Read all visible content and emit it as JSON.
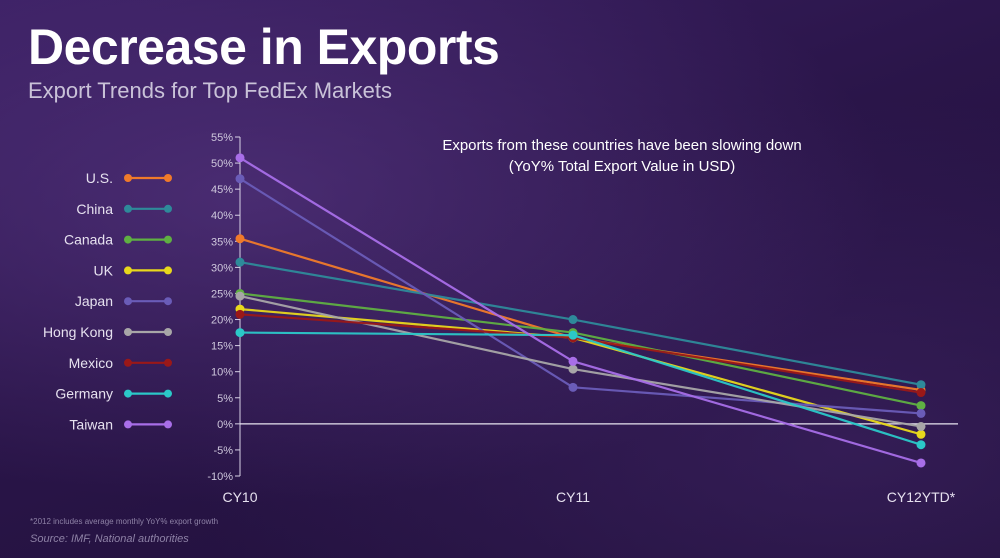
{
  "header": {
    "title": "Decrease in Exports",
    "subtitle": "Export Trends for Top FedEx Markets"
  },
  "footer": {
    "footnote": "*2012 includes average monthly YoY% export growth",
    "source": "Source: IMF, National authorities"
  },
  "chart_data": {
    "type": "line",
    "title": "",
    "annotation": [
      "Exports from these countries have been slowing down",
      "(YoY% Total Export Value in USD)"
    ],
    "xlabel": "",
    "ylabel": "",
    "categories": [
      "CY10",
      "CY11",
      "CY12YTD*"
    ],
    "ylim": [
      -10,
      55
    ],
    "yticks": [
      -10,
      -5,
      0,
      5,
      10,
      15,
      20,
      25,
      30,
      35,
      40,
      45,
      50,
      55
    ],
    "ytick_labels": [
      "-10%",
      "-5%",
      "0%",
      "5%",
      "10%",
      "15%",
      "20%",
      "25%",
      "30%",
      "35%",
      "40%",
      "45%",
      "50%",
      "55%"
    ],
    "grid": false,
    "legend_position": "left",
    "series": [
      {
        "name": "U.S.",
        "color": "#f07a2a",
        "values": [
          35.5,
          16.5,
          6.5
        ]
      },
      {
        "name": "China",
        "color": "#2e8a9a",
        "values": [
          31,
          20,
          7.5
        ]
      },
      {
        "name": "Canada",
        "color": "#5fb042",
        "values": [
          25,
          17.5,
          3.5
        ]
      },
      {
        "name": "UK",
        "color": "#e8d81c",
        "values": [
          22,
          16.5,
          -2
        ]
      },
      {
        "name": "Japan",
        "color": "#6a5cb8",
        "values": [
          47,
          7,
          2
        ]
      },
      {
        "name": "Hong Kong",
        "color": "#a8a6a8",
        "values": [
          24.5,
          10.5,
          -0.5
        ]
      },
      {
        "name": "Mexico",
        "color": "#9a1818",
        "values": [
          21,
          16.5,
          6
        ]
      },
      {
        "name": "Germany",
        "color": "#2bc8c8",
        "values": [
          17.5,
          17,
          -4
        ]
      },
      {
        "name": "Taiwan",
        "color": "#a86ee8",
        "values": [
          51,
          12,
          -7.5
        ]
      }
    ]
  }
}
